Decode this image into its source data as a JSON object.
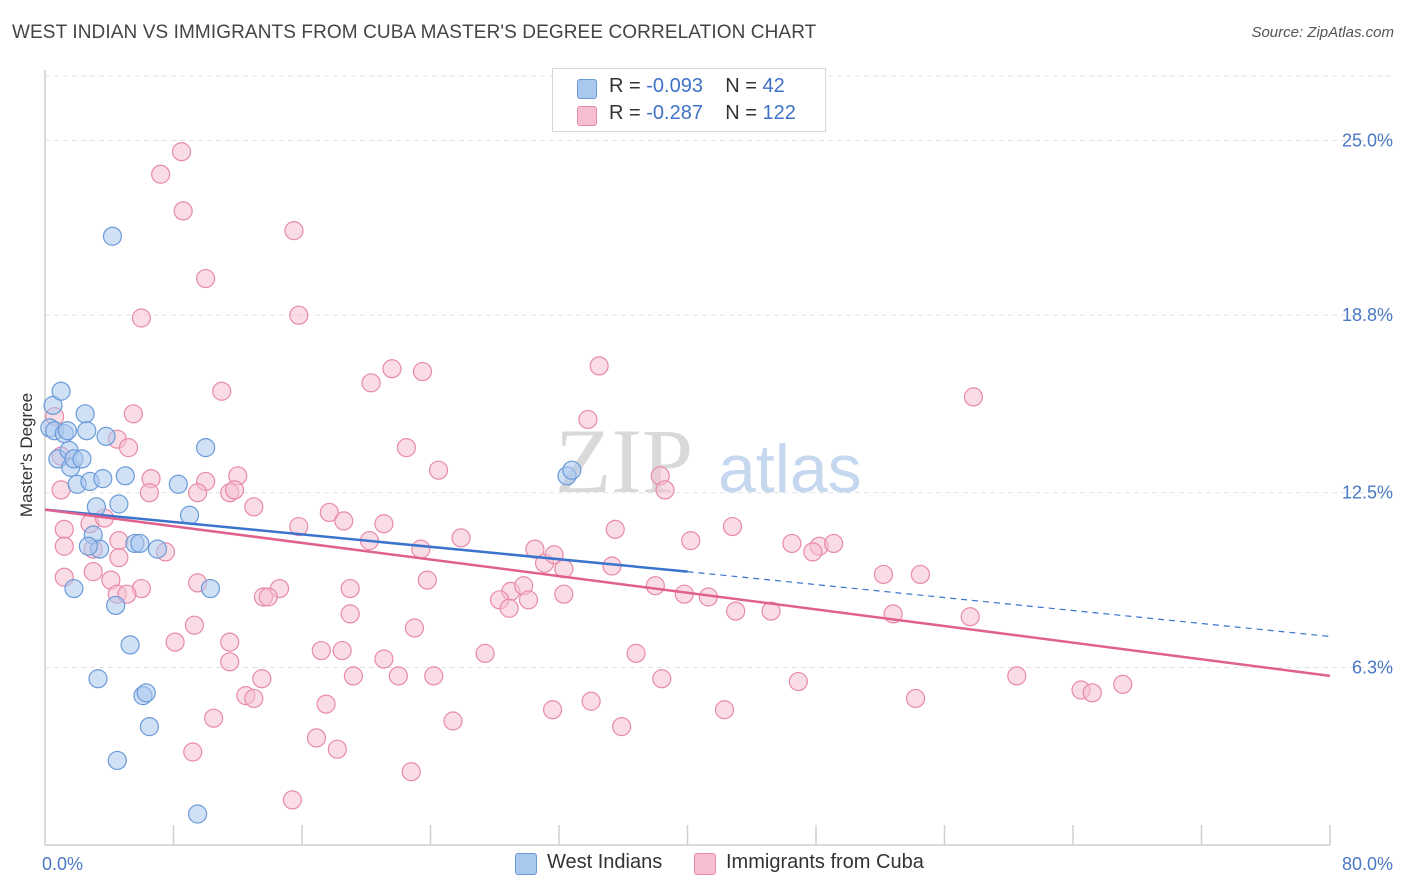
{
  "title": "WEST INDIAN VS IMMIGRANTS FROM CUBA MASTER'S DEGREE CORRELATION CHART",
  "source": "Source: ZipAtlas.com",
  "watermark": {
    "zip": "ZIP",
    "atlas": "atlas"
  },
  "colors": {
    "blue_fill": "#a9c8ee",
    "blue_stroke": "#6a9ad8",
    "blue_line": "#3a74cc",
    "pink_fill": "#f5bfd0",
    "pink_stroke": "#e88aa8",
    "pink_line": "#e0608e",
    "grid": "#e2e2e2",
    "tick_text": "#4a78c4"
  },
  "legend": {
    "rows": [
      {
        "r_label": "R =",
        "r_value": "-0.093",
        "n_label": "N =",
        "n_value": "42"
      },
      {
        "r_label": "R =",
        "r_value": "-0.287",
        "n_label": "N =",
        "n_value": "122"
      }
    ]
  },
  "bottom_legend": [
    "West Indians",
    "Immigrants from Cuba"
  ],
  "chart_data": {
    "type": "scatter",
    "ylabel": "Master's Degree",
    "xlim": [
      0,
      80
    ],
    "ylim": [
      0,
      27.5
    ],
    "x_tick_labels": [
      {
        "value": 0,
        "label": "0.0%"
      },
      {
        "value": 80,
        "label": "80.0%"
      }
    ],
    "y_tick_labels": [
      {
        "value": 6.3,
        "label": "6.3%"
      },
      {
        "value": 12.5,
        "label": "12.5%"
      },
      {
        "value": 18.8,
        "label": "18.8%"
      },
      {
        "value": 25.0,
        "label": "25.0%"
      }
    ],
    "x_minor_ticks": [
      8,
      16,
      24,
      32,
      40,
      48,
      56,
      64,
      72,
      80
    ],
    "series": [
      {
        "name": "West Indians",
        "r": -0.093,
        "n": 42,
        "trend": {
          "x0": 0,
          "y0": 11.9,
          "x1": 40,
          "y1": 9.7,
          "dashed_to_x": 80,
          "dashed_to_y": 7.4
        },
        "points": [
          [
            0.3,
            14.8
          ],
          [
            0.5,
            15.6
          ],
          [
            0.6,
            14.7
          ],
          [
            0.8,
            13.7
          ],
          [
            1.0,
            16.1
          ],
          [
            1.2,
            14.6
          ],
          [
            1.4,
            14.7
          ],
          [
            1.5,
            14.0
          ],
          [
            1.6,
            13.4
          ],
          [
            1.8,
            13.7
          ],
          [
            2.0,
            12.8
          ],
          [
            2.3,
            13.7
          ],
          [
            2.5,
            15.3
          ],
          [
            2.6,
            14.7
          ],
          [
            2.8,
            12.9
          ],
          [
            3.0,
            11.0
          ],
          [
            3.2,
            12.0
          ],
          [
            3.4,
            10.5
          ],
          [
            3.6,
            13.0
          ],
          [
            3.8,
            14.5
          ],
          [
            4.2,
            21.6
          ],
          [
            4.4,
            8.5
          ],
          [
            5.0,
            13.1
          ],
          [
            5.3,
            7.1
          ],
          [
            5.6,
            10.7
          ],
          [
            5.9,
            10.7
          ],
          [
            6.1,
            5.3
          ],
          [
            6.3,
            5.4
          ],
          [
            6.5,
            4.2
          ],
          [
            4.5,
            3.0
          ],
          [
            8.3,
            12.8
          ],
          [
            9.0,
            11.7
          ],
          [
            10.0,
            14.1
          ],
          [
            10.3,
            9.1
          ],
          [
            9.5,
            1.1
          ],
          [
            3.3,
            5.9
          ],
          [
            1.8,
            9.1
          ],
          [
            32.5,
            13.1
          ],
          [
            32.8,
            13.3
          ],
          [
            7.0,
            10.5
          ],
          [
            2.7,
            10.6
          ],
          [
            4.6,
            12.1
          ]
        ]
      },
      {
        "name": "Immigrants from Cuba",
        "r": -0.287,
        "n": 122,
        "trend": {
          "x0": 0,
          "y0": 11.9,
          "x1": 80,
          "y1": 6.0
        },
        "points": [
          [
            8.5,
            24.6
          ],
          [
            7.2,
            23.8
          ],
          [
            8.6,
            22.5
          ],
          [
            15.5,
            21.8
          ],
          [
            10.0,
            20.1
          ],
          [
            6.0,
            18.7
          ],
          [
            15.8,
            18.8
          ],
          [
            23.5,
            16.8
          ],
          [
            21.6,
            16.9
          ],
          [
            20.3,
            16.4
          ],
          [
            11.0,
            16.1
          ],
          [
            33.8,
            15.1
          ],
          [
            34.5,
            17.0
          ],
          [
            57.8,
            15.9
          ],
          [
            5.5,
            15.3
          ],
          [
            0.6,
            15.2
          ],
          [
            1.0,
            13.8
          ],
          [
            4.5,
            14.4
          ],
          [
            5.2,
            14.1
          ],
          [
            22.5,
            14.1
          ],
          [
            24.5,
            13.3
          ],
          [
            12.0,
            13.1
          ],
          [
            6.6,
            13.0
          ],
          [
            10.0,
            12.9
          ],
          [
            38.3,
            13.1
          ],
          [
            38.6,
            12.6
          ],
          [
            1.0,
            12.6
          ],
          [
            6.5,
            12.5
          ],
          [
            9.5,
            12.5
          ],
          [
            11.5,
            12.5
          ],
          [
            11.8,
            12.6
          ],
          [
            13.0,
            12.0
          ],
          [
            17.7,
            11.8
          ],
          [
            18.6,
            11.5
          ],
          [
            21.1,
            11.4
          ],
          [
            15.8,
            11.3
          ],
          [
            1.2,
            11.2
          ],
          [
            2.8,
            11.4
          ],
          [
            3.7,
            11.6
          ],
          [
            20.2,
            10.8
          ],
          [
            25.9,
            10.9
          ],
          [
            35.5,
            11.2
          ],
          [
            42.8,
            11.3
          ],
          [
            40.2,
            10.8
          ],
          [
            46.5,
            10.7
          ],
          [
            48.2,
            10.6
          ],
          [
            1.2,
            10.6
          ],
          [
            3.0,
            10.5
          ],
          [
            4.6,
            10.8
          ],
          [
            7.5,
            10.4
          ],
          [
            4.6,
            10.2
          ],
          [
            23.4,
            10.5
          ],
          [
            30.5,
            10.5
          ],
          [
            31.1,
            10.0
          ],
          [
            31.7,
            10.3
          ],
          [
            32.3,
            9.8
          ],
          [
            35.3,
            9.9
          ],
          [
            49.1,
            10.7
          ],
          [
            47.8,
            10.4
          ],
          [
            52.2,
            9.6
          ],
          [
            54.5,
            9.6
          ],
          [
            1.2,
            9.5
          ],
          [
            3.0,
            9.7
          ],
          [
            4.1,
            9.4
          ],
          [
            9.5,
            9.3
          ],
          [
            14.6,
            9.1
          ],
          [
            19.0,
            9.1
          ],
          [
            23.8,
            9.4
          ],
          [
            29.0,
            9.0
          ],
          [
            32.3,
            8.9
          ],
          [
            38.0,
            9.2
          ],
          [
            39.8,
            8.9
          ],
          [
            41.3,
            8.8
          ],
          [
            13.6,
            8.8
          ],
          [
            13.9,
            8.8
          ],
          [
            4.5,
            8.9
          ],
          [
            6.0,
            9.1
          ],
          [
            28.3,
            8.7
          ],
          [
            28.9,
            8.4
          ],
          [
            19.0,
            8.2
          ],
          [
            43.0,
            8.3
          ],
          [
            45.2,
            8.3
          ],
          [
            52.8,
            8.2
          ],
          [
            57.6,
            8.1
          ],
          [
            9.3,
            7.8
          ],
          [
            23.0,
            7.7
          ],
          [
            5.1,
            8.9
          ],
          [
            8.1,
            7.2
          ],
          [
            11.5,
            7.2
          ],
          [
            17.2,
            6.9
          ],
          [
            18.5,
            6.9
          ],
          [
            27.4,
            6.8
          ],
          [
            21.1,
            6.6
          ],
          [
            36.8,
            6.8
          ],
          [
            11.5,
            6.5
          ],
          [
            13.5,
            5.9
          ],
          [
            19.2,
            6.0
          ],
          [
            22.0,
            6.0
          ],
          [
            24.2,
            6.0
          ],
          [
            38.4,
            5.9
          ],
          [
            46.9,
            5.8
          ],
          [
            60.5,
            6.0
          ],
          [
            64.5,
            5.5
          ],
          [
            65.2,
            5.4
          ],
          [
            67.1,
            5.7
          ],
          [
            12.5,
            5.3
          ],
          [
            13.0,
            5.2
          ],
          [
            17.5,
            5.0
          ],
          [
            31.6,
            4.8
          ],
          [
            34.0,
            5.1
          ],
          [
            42.3,
            4.8
          ],
          [
            54.2,
            5.2
          ],
          [
            10.5,
            4.5
          ],
          [
            25.4,
            4.4
          ],
          [
            35.9,
            4.2
          ],
          [
            16.9,
            3.8
          ],
          [
            18.2,
            3.4
          ],
          [
            9.2,
            3.3
          ],
          [
            22.8,
            2.6
          ],
          [
            15.4,
            1.6
          ],
          [
            29.8,
            9.2
          ],
          [
            30.1,
            8.7
          ]
        ]
      }
    ]
  }
}
